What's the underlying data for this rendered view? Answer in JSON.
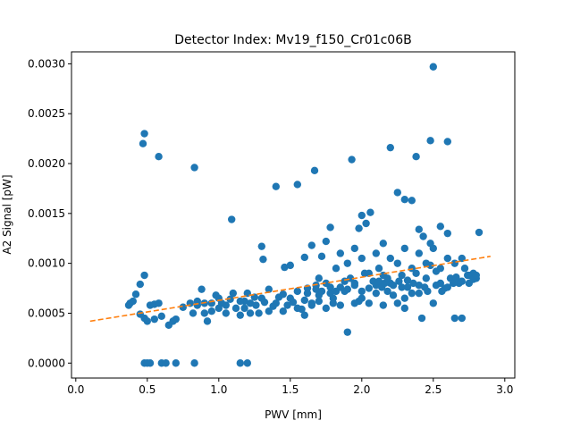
{
  "chart_data": {
    "type": "scatter",
    "title": "Detector Index: Mv19_f150_Cr01c06B",
    "xlabel": "PWV [mm]",
    "ylabel": "A2 Signal [pW]",
    "xlim": [
      -0.03,
      3.07
    ],
    "ylim": [
      -0.00015,
      0.00312
    ],
    "xticks": [
      {
        "value": 0.0,
        "label": "0.0"
      },
      {
        "value": 0.5,
        "label": "0.5"
      },
      {
        "value": 1.0,
        "label": "1.0"
      },
      {
        "value": 1.5,
        "label": "1.5"
      },
      {
        "value": 2.0,
        "label": "2.0"
      },
      {
        "value": 2.5,
        "label": "2.5"
      },
      {
        "value": 3.0,
        "label": "3.0"
      }
    ],
    "yticks": [
      {
        "value": 0.0,
        "label": "0.0000"
      },
      {
        "value": 0.0005,
        "label": "0.0005"
      },
      {
        "value": 0.001,
        "label": "0.0010"
      },
      {
        "value": 0.0015,
        "label": "0.0015"
      },
      {
        "value": 0.002,
        "label": "0.0020"
      },
      {
        "value": 0.0025,
        "label": "0.0025"
      },
      {
        "value": 0.003,
        "label": "0.0030"
      }
    ],
    "colors": {
      "points": "#1f77b4",
      "fit": "#ff7f0e"
    },
    "series": [
      {
        "name": "data",
        "style": "markers",
        "points": [
          [
            0.48,
            0.0023
          ],
          [
            0.47,
            0.0022
          ],
          [
            0.58,
            0.00207
          ],
          [
            0.83,
            0.00196
          ],
          [
            1.09,
            0.00144
          ],
          [
            1.4,
            0.00177
          ],
          [
            1.55,
            0.00179
          ],
          [
            1.67,
            0.00193
          ],
          [
            1.93,
            0.00204
          ],
          [
            2.2,
            0.00216
          ],
          [
            2.38,
            0.00207
          ],
          [
            2.48,
            0.00223
          ],
          [
            2.6,
            0.00222
          ],
          [
            2.5,
            0.00297
          ],
          [
            2.25,
            0.00171
          ],
          [
            2.3,
            0.00164
          ],
          [
            2.35,
            0.00163
          ],
          [
            1.3,
            0.00117
          ],
          [
            1.31,
            0.00104
          ],
          [
            1.46,
            0.00096
          ],
          [
            1.35,
            0.00074
          ],
          [
            1.2,
            0.0007
          ],
          [
            1.0,
            0.00065
          ],
          [
            0.48,
            0.0
          ],
          [
            0.5,
            0.0
          ],
          [
            0.52,
            0.0
          ],
          [
            0.6,
            0.0
          ],
          [
            0.63,
            0.0
          ],
          [
            0.7,
            0.0
          ],
          [
            0.83,
            0.0
          ],
          [
            1.15,
            0.0
          ],
          [
            1.2,
            0.0
          ],
          [
            0.37,
            0.00058
          ],
          [
            0.38,
            0.0006
          ],
          [
            0.4,
            0.00062
          ],
          [
            0.42,
            0.00069
          ],
          [
            0.45,
            0.00079
          ],
          [
            0.48,
            0.00088
          ],
          [
            0.45,
            0.00049
          ],
          [
            0.48,
            0.00045
          ],
          [
            0.5,
            0.00042
          ],
          [
            0.52,
            0.00058
          ],
          [
            0.55,
            0.00059
          ],
          [
            0.58,
            0.0006
          ],
          [
            0.55,
            0.00044
          ],
          [
            0.6,
            0.00047
          ],
          [
            0.65,
            0.00038
          ],
          [
            0.68,
            0.00042
          ],
          [
            0.7,
            0.00044
          ],
          [
            0.75,
            0.00056
          ],
          [
            0.8,
            0.0006
          ],
          [
            0.82,
            0.0005
          ],
          [
            0.85,
            0.00062
          ],
          [
            0.88,
            0.00074
          ],
          [
            0.9,
            0.0005
          ],
          [
            0.92,
            0.00042
          ],
          [
            0.95,
            0.0006
          ],
          [
            0.98,
            0.00068
          ],
          [
            1.02,
            0.0006
          ],
          [
            1.05,
            0.0005
          ],
          [
            1.08,
            0.00064
          ],
          [
            1.1,
            0.0007
          ],
          [
            1.12,
            0.00055
          ],
          [
            1.15,
            0.00048
          ],
          [
            1.18,
            0.00062
          ],
          [
            1.22,
            0.0006
          ],
          [
            1.25,
            0.00066
          ],
          [
            1.28,
            0.0005
          ],
          [
            1.32,
            0.00061
          ],
          [
            1.35,
            0.00052
          ],
          [
            1.38,
            0.00057
          ],
          [
            1.42,
            0.00066
          ],
          [
            1.45,
            0.00069
          ],
          [
            1.48,
            0.00058
          ],
          [
            1.5,
            0.00065
          ],
          [
            1.52,
            0.00061
          ],
          [
            1.55,
            0.00072
          ],
          [
            1.58,
            0.00054
          ],
          [
            1.6,
            0.00063
          ],
          [
            1.62,
            0.00075
          ],
          [
            1.65,
            0.0006
          ],
          [
            1.68,
            0.00078
          ],
          [
            1.7,
            0.00068
          ],
          [
            1.72,
            0.00107
          ],
          [
            1.75,
            0.0008
          ],
          [
            1.78,
            0.0007
          ],
          [
            1.8,
            0.00065
          ],
          [
            1.82,
            0.00095
          ],
          [
            1.85,
            0.00076
          ],
          [
            1.88,
            0.00072
          ],
          [
            1.9,
            0.00031
          ],
          [
            1.92,
            0.00085
          ],
          [
            1.95,
            0.0008
          ],
          [
            1.98,
            0.00062
          ],
          [
            2.0,
            0.00105
          ],
          [
            2.02,
            0.0009
          ],
          [
            2.05,
            0.00075
          ],
          [
            2.08,
            0.00082
          ],
          [
            2.1,
            0.0007
          ],
          [
            2.12,
            0.00095
          ],
          [
            2.15,
            0.00088
          ],
          [
            2.18,
            0.00072
          ],
          [
            2.2,
            0.0008
          ],
          [
            2.22,
            0.00068
          ],
          [
            2.25,
            0.001
          ],
          [
            2.28,
            0.00076
          ],
          [
            2.3,
            0.00065
          ],
          [
            2.32,
            0.00083
          ],
          [
            2.35,
            0.0007
          ],
          [
            2.38,
            0.0009
          ],
          [
            2.4,
            0.00078
          ],
          [
            2.42,
            0.00045
          ],
          [
            2.45,
            0.00085
          ],
          [
            2.48,
            0.00098
          ],
          [
            2.5,
            0.0006
          ],
          [
            2.52,
            0.00092
          ],
          [
            2.55,
            0.0008
          ],
          [
            2.58,
            0.00075
          ],
          [
            2.6,
            0.00105
          ],
          [
            2.62,
            0.00085
          ],
          [
            2.65,
            0.00045
          ],
          [
            2.68,
            0.0008
          ],
          [
            2.7,
            0.00045
          ],
          [
            2.72,
            0.00095
          ],
          [
            2.75,
            0.00088
          ],
          [
            2.78,
            0.0009
          ],
          [
            2.8,
            0.00085
          ],
          [
            2.82,
            0.00131
          ],
          [
            2.0,
            0.00148
          ],
          [
            2.03,
            0.0014
          ],
          [
            2.06,
            0.00151
          ],
          [
            1.98,
            0.00135
          ],
          [
            1.78,
            0.00136
          ],
          [
            2.15,
            0.0012
          ],
          [
            2.4,
            0.00134
          ],
          [
            2.43,
            0.00127
          ],
          [
            2.55,
            0.00137
          ],
          [
            2.48,
            0.0012
          ],
          [
            2.6,
            0.0013
          ],
          [
            1.6,
            0.00106
          ],
          [
            1.5,
            0.00098
          ],
          [
            1.65,
            0.00118
          ],
          [
            1.7,
            0.00085
          ],
          [
            1.75,
            0.00122
          ],
          [
            1.85,
            0.0011
          ],
          [
            1.9,
            0.001
          ],
          [
            1.95,
            0.00115
          ],
          [
            2.1,
            0.0011
          ],
          [
            2.2,
            0.00105
          ],
          [
            2.3,
            0.00115
          ],
          [
            2.35,
            0.00095
          ],
          [
            2.4,
            0.0011
          ],
          [
            2.45,
            0.001
          ],
          [
            2.5,
            0.00115
          ],
          [
            2.55,
            0.00095
          ],
          [
            2.65,
            0.001
          ],
          [
            2.7,
            0.00105
          ],
          [
            2.75,
            0.0008
          ],
          [
            1.4,
            0.0006
          ],
          [
            1.45,
            0.00052
          ],
          [
            1.55,
            0.00055
          ],
          [
            1.6,
            0.00048
          ],
          [
            1.65,
            0.00058
          ],
          [
            1.7,
            0.00062
          ],
          [
            1.75,
            0.00055
          ],
          [
            1.8,
            0.0006
          ],
          [
            1.85,
            0.00058
          ],
          [
            1.95,
            0.0006
          ],
          [
            2.0,
            0.00065
          ],
          [
            2.05,
            0.0006
          ],
          [
            2.15,
            0.00058
          ],
          [
            2.25,
            0.0006
          ],
          [
            2.3,
            0.00055
          ],
          [
            1.15,
            0.00062
          ],
          [
            1.18,
            0.00055
          ],
          [
            1.22,
            0.0005
          ],
          [
            1.26,
            0.00058
          ],
          [
            1.3,
            0.00065
          ],
          [
            1.05,
            0.00058
          ],
          [
            1.0,
            0.00055
          ],
          [
            0.95,
            0.00052
          ],
          [
            0.9,
            0.0006
          ],
          [
            0.85,
            0.00058
          ],
          [
            2.1,
            0.00078
          ],
          [
            2.12,
            0.00082
          ],
          [
            2.14,
            0.00076
          ],
          [
            2.16,
            0.0008
          ],
          [
            2.18,
            0.00085
          ],
          [
            2.22,
            0.00078
          ],
          [
            2.26,
            0.00082
          ],
          [
            2.28,
            0.00088
          ],
          [
            2.32,
            0.00076
          ],
          [
            2.36,
            0.0008
          ],
          [
            2.05,
            0.0009
          ],
          [
            2.0,
            0.00072
          ],
          [
            1.95,
            0.00078
          ],
          [
            1.9,
            0.00074
          ],
          [
            1.88,
            0.00082
          ],
          [
            1.82,
            0.00072
          ],
          [
            1.78,
            0.00076
          ],
          [
            1.72,
            0.00072
          ],
          [
            1.68,
            0.00074
          ],
          [
            1.62,
            0.0007
          ],
          [
            2.4,
            0.0007
          ],
          [
            2.44,
            0.00076
          ],
          [
            2.46,
            0.00072
          ],
          [
            2.52,
            0.00078
          ],
          [
            2.56,
            0.00072
          ],
          [
            2.6,
            0.00076
          ],
          [
            2.64,
            0.0008
          ],
          [
            2.66,
            0.00086
          ],
          [
            2.7,
            0.00082
          ],
          [
            2.74,
            0.00088
          ],
          [
            2.78,
            0.00084
          ],
          [
            2.8,
            0.00088
          ]
        ]
      },
      {
        "name": "linear fit",
        "style": "dashed-line",
        "points": [
          [
            0.1,
            0.00042
          ],
          [
            2.9,
            0.00107
          ]
        ]
      }
    ]
  }
}
